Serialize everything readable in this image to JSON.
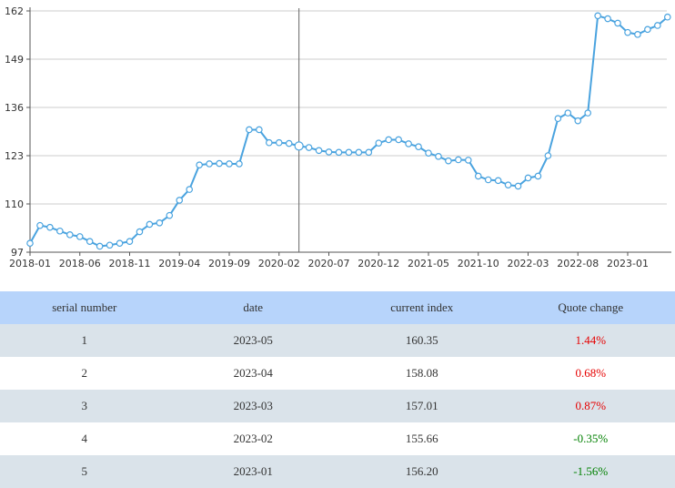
{
  "colors": {
    "line": "#4aa3df",
    "up": "#e60000",
    "down": "#008000",
    "header": "#b7d4fb",
    "stripe": "#dae3ea"
  },
  "chart_data": {
    "type": "line",
    "title": "",
    "xlabel": "",
    "ylabel": "",
    "ylim": [
      97,
      162
    ],
    "y_ticks": [
      97,
      110,
      123,
      136,
      149,
      162
    ],
    "x_tick_labels": [
      "2018-01",
      "2018-06",
      "2018-11",
      "2019-04",
      "2019-09",
      "2020-02",
      "2020-07",
      "2020-12",
      "2021-05",
      "2021-10",
      "2022-03",
      "2022-08",
      "2023-01"
    ],
    "grid": true,
    "cursor_x": "2020-04",
    "x": [
      "2018-01",
      "2018-02",
      "2018-03",
      "2018-04",
      "2018-05",
      "2018-06",
      "2018-07",
      "2018-08",
      "2018-09",
      "2018-10",
      "2018-11",
      "2018-12",
      "2019-01",
      "2019-02",
      "2019-03",
      "2019-04",
      "2019-05",
      "2019-06",
      "2019-07",
      "2019-08",
      "2019-09",
      "2019-10",
      "2019-11",
      "2019-12",
      "2020-01",
      "2020-02",
      "2020-03",
      "2020-04",
      "2020-05",
      "2020-06",
      "2020-07",
      "2020-08",
      "2020-09",
      "2020-10",
      "2020-11",
      "2020-12",
      "2021-01",
      "2021-02",
      "2021-03",
      "2021-04",
      "2021-05",
      "2021-06",
      "2021-07",
      "2021-08",
      "2021-09",
      "2021-10",
      "2021-11",
      "2021-12",
      "2022-01",
      "2022-02",
      "2022-03",
      "2022-04",
      "2022-05",
      "2022-06",
      "2022-07",
      "2022-08",
      "2022-09",
      "2022-10",
      "2022-11",
      "2022-12",
      "2023-01",
      "2023-02",
      "2023-03",
      "2023-04",
      "2023-05"
    ],
    "series": [
      {
        "values": [
          99.4,
          104.2,
          103.7,
          102.7,
          101.7,
          101.2,
          99.9,
          98.6,
          98.9,
          99.4,
          99.9,
          102.5,
          104.5,
          104.9,
          106.9,
          111.0,
          113.9,
          120.5,
          120.8,
          120.9,
          120.8,
          120.8,
          130.0,
          130.0,
          126.5,
          126.5,
          126.3,
          125.6,
          125.2,
          124.4,
          124.0,
          123.9,
          123.9,
          123.9,
          123.9,
          126.4,
          127.3,
          127.3,
          126.2,
          125.4,
          123.7,
          122.8,
          121.6,
          121.9,
          121.8,
          117.5,
          116.5,
          116.3,
          115.1,
          114.8,
          117.0,
          117.5,
          123.0,
          133.0,
          134.5,
          132.4,
          134.5,
          160.7,
          159.9,
          158.7,
          156.2,
          155.66,
          157.01,
          158.08,
          160.35
        ]
      }
    ]
  },
  "table": {
    "headers": [
      "serial number",
      "date",
      "current index",
      "Quote change"
    ],
    "rows": [
      {
        "serial": "1",
        "date": "2023-05",
        "index": "160.35",
        "change": "1.44%",
        "dir": "up"
      },
      {
        "serial": "2",
        "date": "2023-04",
        "index": "158.08",
        "change": "0.68%",
        "dir": "up"
      },
      {
        "serial": "3",
        "date": "2023-03",
        "index": "157.01",
        "change": "0.87%",
        "dir": "up"
      },
      {
        "serial": "4",
        "date": "2023-02",
        "index": "155.66",
        "change": "-0.35%",
        "dir": "down"
      },
      {
        "serial": "5",
        "date": "2023-01",
        "index": "156.20",
        "change": "-1.56%",
        "dir": "down"
      }
    ]
  }
}
